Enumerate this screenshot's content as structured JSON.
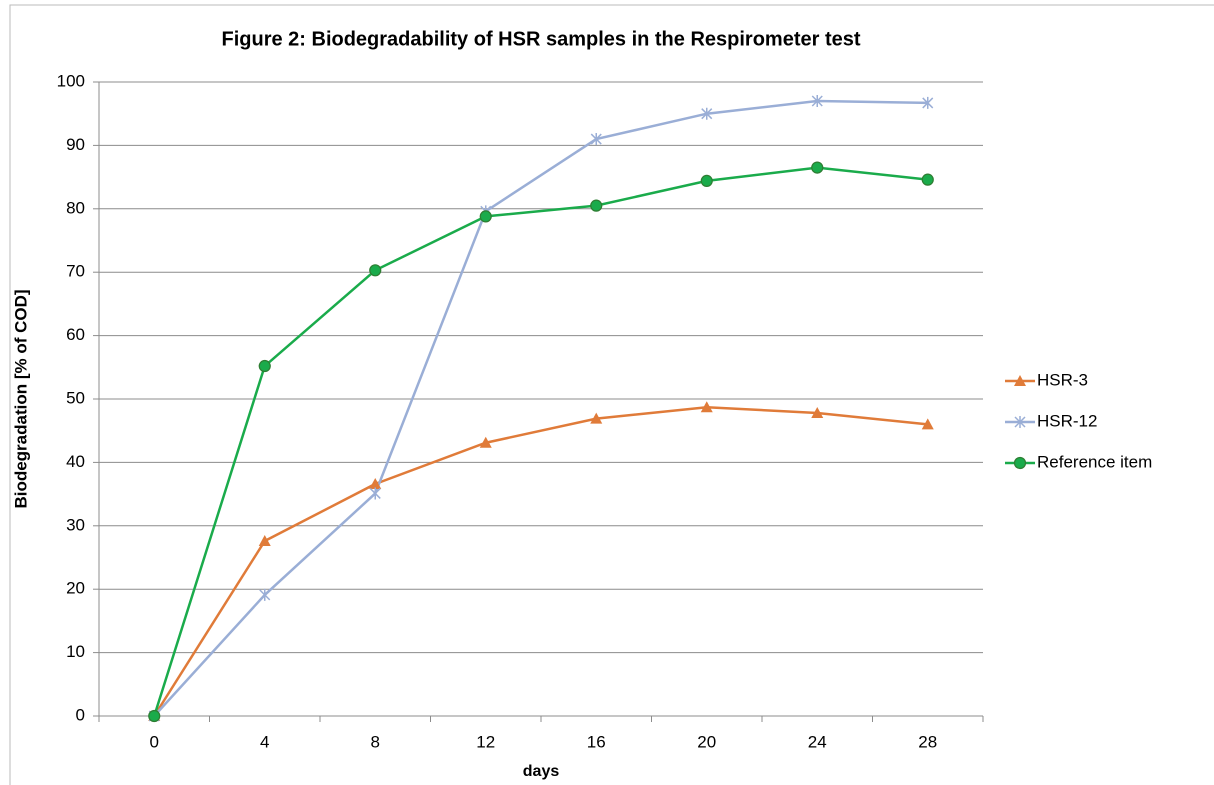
{
  "chart_data": {
    "type": "line",
    "title": "Figure 2: Biodegradability of HSR samples in the Respirometer test",
    "x_label": "days",
    "y_label": "Biodegradation [% of COD]",
    "categories": [
      0,
      4,
      8,
      12,
      16,
      20,
      24,
      28
    ],
    "series": [
      {
        "name": "HSR-3",
        "color": "#e07b39",
        "marker": "triangle",
        "values": [
          0,
          27.6,
          36.6,
          43.1,
          46.9,
          48.7,
          47.8,
          46.0
        ]
      },
      {
        "name": "HSR-12",
        "color": "#9aaed6",
        "marker": "asterisk",
        "values": [
          0,
          19.1,
          35.1,
          79.6,
          91.0,
          95.0,
          97.0,
          96.7
        ]
      },
      {
        "name": "Reference item",
        "color": "#1aab4b",
        "marker": "circle",
        "values": [
          0,
          55.2,
          70.3,
          78.8,
          80.5,
          84.4,
          86.5,
          84.6
        ]
      }
    ],
    "ylim": [
      0,
      100
    ],
    "yticks": [
      0,
      10,
      20,
      30,
      40,
      50,
      60,
      70,
      80,
      90,
      100
    ],
    "grid": true,
    "legend": "right"
  }
}
